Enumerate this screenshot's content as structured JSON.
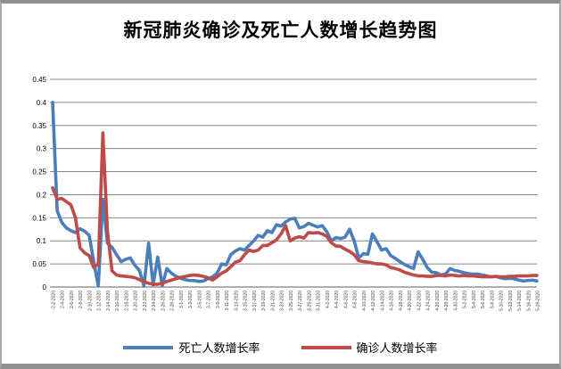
{
  "title": "新冠肺炎确诊及死亡人数增长趋势图",
  "legend": [
    {
      "label": "死亡人数增长率",
      "color": "#4a7ebb"
    },
    {
      "label": "确诊人数增长率",
      "color": "#be4b48"
    }
  ],
  "style": {
    "gridline_color": "#848484",
    "axis_color": "#7f7f7f",
    "tick_label_color": "#3f3f3f",
    "y_label_color": "#000000"
  },
  "chart_data": {
    "type": "line",
    "title": "新冠肺炎确诊及死亡人数增长趋势图",
    "grid": true,
    "legend_position": "bottom",
    "ylim": [
      0,
      0.45
    ],
    "y_tick_labels": [
      "0",
      "0.05",
      "0.1",
      "0.15",
      "0.2",
      "0.25",
      "0.3",
      "0.35",
      "0.4",
      "0.45"
    ],
    "x_tick_every": 2,
    "x": [
      "2-2-2020",
      "2-3-2020",
      "2-4-2020",
      "2-5-2020",
      "2-6-2020",
      "2-7-2020",
      "2-8-2020",
      "2-9-2020",
      "2-10-2020",
      "2-11-2020",
      "2-12-2020",
      "2-13-2020",
      "2-14-2020",
      "2-15-2020",
      "2-16-2020",
      "2-17-2020",
      "2-18-2020",
      "2-19-2020",
      "2-20-2020",
      "2-21-2020",
      "2-22-2020",
      "2-23-2020",
      "2-24-2020",
      "2-25-2020",
      "2-26-2020",
      "2-27-2020",
      "2-28-2020",
      "2-29-2020",
      "3-1-2020",
      "3-2-2020",
      "3-3-2020",
      "3-4-2020",
      "3-5-2020",
      "3-6-2020",
      "3-7-2020",
      "3-8-2020",
      "3-9-2020",
      "3-10-2020",
      "3-11-2020",
      "3-12-2020",
      "3-13-2020",
      "3-14-2020",
      "3-15-2020",
      "3-16-2020",
      "3-17-2020",
      "3-18-2020",
      "3-19-2020",
      "3-20-2020",
      "3-21-2020",
      "3-22-2020",
      "3-23-2020",
      "3-24-2020",
      "3-25-2020",
      "3-26-2020",
      "3-27-2020",
      "3-28-2020",
      "3-29-2020",
      "3-30-2020",
      "3-31-2020",
      "4-1-2020",
      "4-2-2020",
      "4-3-2020",
      "4-4-2020",
      "4-5-2020",
      "4-6-2020",
      "4-7-2020",
      "4-8-2020",
      "4-9-2020",
      "4-10-2020",
      "4-11-2020",
      "4-12-2020",
      "4-13-2020",
      "4-14-2020",
      "4-15-2020",
      "4-16-2020",
      "4-17-2020",
      "4-18-2020",
      "4-19-2020",
      "4-20-2020",
      "4-21-2020",
      "4-22-2020",
      "4-23-2020",
      "4-24-2020",
      "4-25-2020",
      "4-26-2020",
      "4-27-2020",
      "4-28-2020",
      "4-29-2020",
      "4-30-2020",
      "5-1-2020",
      "5-2-2020",
      "5-3-2020",
      "5-4-2020",
      "5-5-2020",
      "5-6-2020",
      "5-7-2020",
      "5-8-2020",
      "5-9-2020",
      "5-10-2020",
      "5-11-2020",
      "5-12-2020",
      "5-13-2020",
      "5-14-2020",
      "5-15-2020",
      "5-16-2020",
      "5-17-2020",
      "5-18-2020"
    ],
    "series": [
      {
        "name": "死亡人数增长率",
        "color": "#4a7ebb",
        "values": [
          0.4,
          0.165,
          0.14,
          0.128,
          0.122,
          0.118,
          0.126,
          0.121,
          0.112,
          0.055,
          0.002,
          0.19,
          0.095,
          0.086,
          0.07,
          0.055,
          0.06,
          0.063,
          0.047,
          0.036,
          0.002,
          0.095,
          0.005,
          0.065,
          0.003,
          0.04,
          0.03,
          0.023,
          0.019,
          0.016,
          0.014,
          0.014,
          0.012,
          0.013,
          0.018,
          0.022,
          0.03,
          0.05,
          0.048,
          0.07,
          0.078,
          0.083,
          0.08,
          0.09,
          0.1,
          0.112,
          0.108,
          0.122,
          0.118,
          0.135,
          0.132,
          0.141,
          0.147,
          0.149,
          0.128,
          0.131,
          0.138,
          0.134,
          0.13,
          0.133,
          0.12,
          0.1,
          0.107,
          0.105,
          0.108,
          0.125,
          0.1,
          0.063,
          0.072,
          0.071,
          0.115,
          0.098,
          0.08,
          0.083,
          0.068,
          0.062,
          0.055,
          0.049,
          0.044,
          0.04,
          0.076,
          0.06,
          0.042,
          0.032,
          0.031,
          0.026,
          0.028,
          0.04,
          0.036,
          0.034,
          0.031,
          0.029,
          0.028,
          0.028,
          0.026,
          0.024,
          0.022,
          0.023,
          0.02,
          0.018,
          0.019,
          0.018,
          0.015,
          0.013,
          0.014,
          0.015,
          0.013
        ]
      },
      {
        "name": "确诊人数增长率",
        "color": "#be4b48",
        "values": [
          0.215,
          0.19,
          0.192,
          0.185,
          0.178,
          0.15,
          0.085,
          0.074,
          0.068,
          0.042,
          0.05,
          0.334,
          0.12,
          0.035,
          0.026,
          0.024,
          0.023,
          0.022,
          0.02,
          0.016,
          0.012,
          0.008,
          0.006,
          0.006,
          0.008,
          0.012,
          0.015,
          0.018,
          0.021,
          0.023,
          0.025,
          0.026,
          0.025,
          0.023,
          0.02,
          0.015,
          0.022,
          0.03,
          0.035,
          0.044,
          0.054,
          0.057,
          0.07,
          0.08,
          0.077,
          0.08,
          0.09,
          0.09,
          0.096,
          0.102,
          0.115,
          0.133,
          0.1,
          0.106,
          0.109,
          0.106,
          0.118,
          0.117,
          0.118,
          0.115,
          0.11,
          0.096,
          0.089,
          0.088,
          0.082,
          0.077,
          0.07,
          0.057,
          0.055,
          0.054,
          0.052,
          0.05,
          0.05,
          0.048,
          0.042,
          0.04,
          0.037,
          0.032,
          0.029,
          0.026,
          0.024,
          0.024,
          0.023,
          0.023,
          0.025,
          0.025,
          0.024,
          0.026,
          0.025,
          0.024,
          0.025,
          0.024,
          0.024,
          0.023,
          0.022,
          0.022,
          0.022,
          0.023,
          0.022,
          0.022,
          0.023,
          0.023,
          0.024,
          0.024,
          0.024,
          0.025,
          0.025
        ]
      }
    ]
  }
}
